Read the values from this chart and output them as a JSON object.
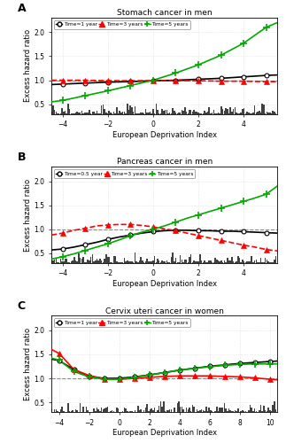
{
  "panel_A": {
    "title": "Stomach cancer in men",
    "label": "A",
    "xlim": [
      -4.5,
      5.5
    ],
    "ylim": [
      0.3,
      2.3
    ],
    "xticks": [
      -4,
      -2,
      0,
      2,
      4
    ],
    "yticks": [
      0.5,
      1.0,
      1.5,
      2.0
    ],
    "xlabel": "European Deprivation Index",
    "ylabel": "Excess hazard ratio",
    "dashed_y": 1.0,
    "legend_labels": [
      "Time=1 year",
      "Time=3 years",
      "Time=5 years"
    ],
    "legend_colors": [
      "black",
      "red",
      "#00aa00"
    ],
    "legend_markers": [
      "o",
      "^",
      "+"
    ],
    "t1_x": [
      -4.5,
      -4,
      -3,
      -2,
      -1,
      0,
      1,
      2,
      3,
      4,
      5,
      5.5
    ],
    "t1_y": [
      0.91,
      0.92,
      0.94,
      0.96,
      0.97,
      0.99,
      1.0,
      1.02,
      1.04,
      1.07,
      1.1,
      1.11
    ],
    "t3_x": [
      -4.5,
      -4,
      -3,
      -2,
      -1,
      0,
      1,
      2,
      3,
      4,
      5,
      5.5
    ],
    "t3_y": [
      1.0,
      1.0,
      1.0,
      0.99,
      0.99,
      0.99,
      0.99,
      0.99,
      0.98,
      0.98,
      0.97,
      0.97
    ],
    "t5_x": [
      -4.5,
      -4,
      -3,
      -2,
      -1,
      0,
      1,
      2,
      3,
      4,
      5,
      5.5
    ],
    "t5_y": [
      0.55,
      0.58,
      0.68,
      0.78,
      0.89,
      1.0,
      1.15,
      1.32,
      1.52,
      1.77,
      2.1,
      2.2
    ],
    "marker_x_t1": [
      -4,
      -3,
      -2,
      -1,
      0,
      1,
      2,
      3,
      4,
      5
    ],
    "marker_y_t1": [
      0.92,
      0.94,
      0.96,
      0.97,
      0.99,
      1.0,
      1.02,
      1.04,
      1.07,
      1.1
    ],
    "marker_x_t3": [
      -4,
      -3,
      -2,
      -1,
      0,
      1,
      2,
      3,
      4,
      5
    ],
    "marker_y_t3": [
      1.0,
      1.0,
      0.99,
      0.99,
      0.99,
      0.99,
      0.99,
      0.98,
      0.98,
      0.97
    ],
    "marker_x_t5": [
      -4,
      -3,
      -2,
      -1,
      0,
      1,
      2,
      3,
      4,
      5
    ],
    "marker_y_t5": [
      0.58,
      0.68,
      0.78,
      0.89,
      1.0,
      1.15,
      1.32,
      1.52,
      1.77,
      2.1
    ],
    "t3_linestyle": "--"
  },
  "panel_B": {
    "title": "Pancreas cancer in men",
    "label": "B",
    "xlim": [
      -4.5,
      5.5
    ],
    "ylim": [
      0.3,
      2.3
    ],
    "xticks": [
      -4,
      -2,
      0,
      2,
      4
    ],
    "yticks": [
      0.5,
      1.0,
      1.5,
      2.0
    ],
    "xlabel": "European Deprivation Index",
    "ylabel": "Excess hazard ratio",
    "dashed_y": 1.0,
    "legend_labels": [
      "Time=0.5 year",
      "Time=3 years",
      "Time=5 years"
    ],
    "legend_colors": [
      "black",
      "red",
      "#00aa00"
    ],
    "legend_markers": [
      "o",
      "^",
      "+"
    ],
    "t1_x": [
      -4.5,
      -4,
      -3.5,
      -3,
      -2.5,
      -2,
      -1.5,
      -1,
      -0.5,
      0,
      0.5,
      1,
      1.5,
      2,
      2.5,
      3,
      3.5,
      4,
      4.5,
      5,
      5.5
    ],
    "t1_y": [
      0.57,
      0.59,
      0.63,
      0.68,
      0.73,
      0.79,
      0.84,
      0.88,
      0.92,
      0.95,
      0.97,
      0.98,
      0.98,
      0.97,
      0.97,
      0.96,
      0.96,
      0.95,
      0.94,
      0.93,
      0.92
    ],
    "t3_x": [
      -4.5,
      -4,
      -3.5,
      -3,
      -2.5,
      -2,
      -1.5,
      -1,
      -0.5,
      0,
      0.5,
      1,
      1.5,
      2,
      2.5,
      3,
      3.5,
      4,
      4.5,
      5,
      5.5
    ],
    "t3_y": [
      0.88,
      0.92,
      0.98,
      1.02,
      1.07,
      1.09,
      1.1,
      1.1,
      1.08,
      1.05,
      1.01,
      0.97,
      0.92,
      0.87,
      0.82,
      0.77,
      0.72,
      0.67,
      0.63,
      0.58,
      0.55
    ],
    "t5_x": [
      -4.5,
      -4,
      -3.5,
      -3,
      -2.5,
      -2,
      -1.5,
      -1,
      -0.5,
      0,
      0.5,
      1,
      1.5,
      2,
      2.5,
      3,
      3.5,
      4,
      4.5,
      5,
      5.5
    ],
    "t5_y": [
      0.38,
      0.43,
      0.49,
      0.56,
      0.63,
      0.7,
      0.78,
      0.87,
      0.94,
      1.0,
      1.07,
      1.15,
      1.23,
      1.3,
      1.37,
      1.44,
      1.51,
      1.58,
      1.65,
      1.73,
      1.9
    ],
    "marker_x_t1": [
      -4,
      -3,
      -2,
      -1,
      0,
      1,
      2,
      3,
      4,
      5
    ],
    "marker_y_t1": [
      0.59,
      0.68,
      0.79,
      0.88,
      0.95,
      0.98,
      0.97,
      0.96,
      0.95,
      0.93
    ],
    "marker_x_t3": [
      -4,
      -3,
      -2,
      -1,
      0,
      1,
      2,
      3,
      4,
      5
    ],
    "marker_y_t3": [
      0.92,
      1.02,
      1.09,
      1.1,
      1.05,
      0.97,
      0.87,
      0.77,
      0.67,
      0.58
    ],
    "marker_x_t5": [
      -4,
      -3,
      -2,
      -1,
      0,
      1,
      2,
      3,
      4,
      5
    ],
    "marker_y_t5": [
      0.43,
      0.56,
      0.7,
      0.87,
      1.0,
      1.15,
      1.3,
      1.44,
      1.58,
      1.73
    ],
    "t3_linestyle": "--"
  },
  "panel_C": {
    "title": "Cervix uteri cancer in women",
    "label": "C",
    "xlim": [
      -4.5,
      10.5
    ],
    "ylim": [
      0.3,
      2.3
    ],
    "xticks": [
      -4,
      -2,
      0,
      2,
      4,
      6,
      8,
      10
    ],
    "yticks": [
      0.5,
      1.0,
      1.5,
      2.0
    ],
    "xlabel": "European Deprivation Index",
    "ylabel": "Excess hazard ratio",
    "dashed_y": 1.0,
    "legend_labels": [
      "Time=1 year",
      "Time=3 years",
      "Time=5 years"
    ],
    "legend_colors": [
      "black",
      "red",
      "#00aa00"
    ],
    "legend_markers": [
      "o",
      "^",
      "+"
    ],
    "t1_x": [
      -4.5,
      -4,
      -3,
      -2,
      -1,
      0,
      1,
      2,
      3,
      4,
      5,
      6,
      7,
      8,
      9,
      10,
      10.5
    ],
    "t1_y": [
      1.4,
      1.37,
      1.18,
      1.04,
      1.0,
      1.0,
      1.03,
      1.07,
      1.12,
      1.17,
      1.21,
      1.25,
      1.28,
      1.31,
      1.33,
      1.35,
      1.36
    ],
    "t3_x": [
      -4.5,
      -4,
      -3,
      -2,
      -1,
      0,
      1,
      2,
      3,
      4,
      5,
      6,
      7,
      8,
      9,
      10,
      10.5
    ],
    "t3_y": [
      1.6,
      1.52,
      1.18,
      1.06,
      0.99,
      0.98,
      1.0,
      1.02,
      1.04,
      1.05,
      1.05,
      1.05,
      1.04,
      1.03,
      1.01,
      0.98,
      0.97
    ],
    "t5_x": [
      -4.5,
      -4,
      -3,
      -2,
      -1,
      0,
      1,
      2,
      3,
      4,
      5,
      6,
      7,
      8,
      9,
      10,
      10.5
    ],
    "t5_y": [
      1.42,
      1.38,
      1.14,
      1.03,
      0.98,
      0.98,
      1.02,
      1.07,
      1.12,
      1.17,
      1.21,
      1.24,
      1.27,
      1.29,
      1.3,
      1.3,
      1.3
    ],
    "marker_x_t1": [
      -4,
      -3,
      -2,
      -1,
      0,
      1,
      2,
      3,
      4,
      5,
      6,
      7,
      8,
      9,
      10
    ],
    "marker_y_t1": [
      1.37,
      1.18,
      1.04,
      1.0,
      1.0,
      1.03,
      1.07,
      1.12,
      1.17,
      1.21,
      1.25,
      1.28,
      1.31,
      1.33,
      1.35
    ],
    "marker_x_t3": [
      -4,
      -3,
      -2,
      -1,
      0,
      1,
      2,
      3,
      4,
      5,
      6,
      7,
      8,
      9,
      10
    ],
    "marker_y_t3": [
      1.52,
      1.18,
      1.06,
      0.99,
      0.98,
      1.0,
      1.02,
      1.04,
      1.05,
      1.05,
      1.05,
      1.04,
      1.03,
      1.01,
      0.98
    ],
    "marker_x_t5": [
      -4,
      -3,
      -2,
      -1,
      0,
      1,
      2,
      3,
      4,
      5,
      6,
      7,
      8,
      9,
      10
    ],
    "marker_y_t5": [
      1.38,
      1.14,
      1.03,
      0.98,
      0.98,
      1.02,
      1.07,
      1.12,
      1.17,
      1.21,
      1.24,
      1.27,
      1.29,
      1.3,
      1.3
    ],
    "t3_linestyle": "-"
  }
}
